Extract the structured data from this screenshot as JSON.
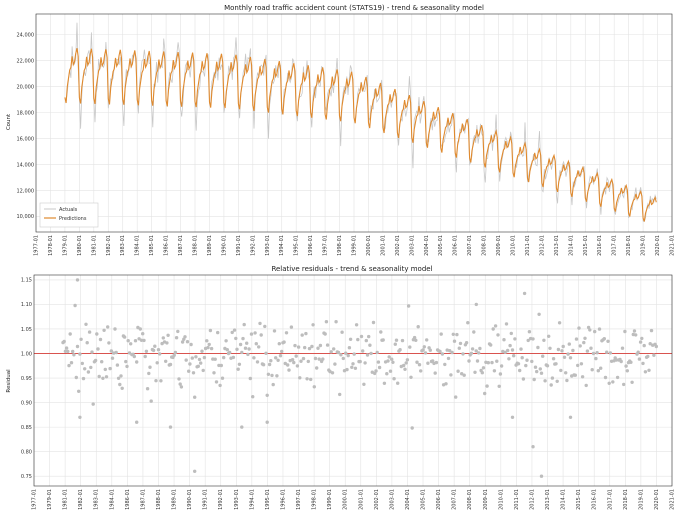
{
  "colors": {
    "actual": "#c8c8c8",
    "prediction": "#e08a2e",
    "residual_point": "#bdbdbd",
    "reference_line": "#d9534f"
  },
  "chart_data": [
    {
      "type": "line",
      "title": "Monthly road traffic accident count (STATS19) - trend & seasonality model",
      "xlabel": "",
      "ylabel": "Count",
      "xlim": [
        "1977-01",
        "2021-01"
      ],
      "ylim": [
        8800,
        25600
      ],
      "yticks": [
        10000,
        12000,
        14000,
        16000,
        18000,
        20000,
        22000,
        24000
      ],
      "ytick_labels": [
        "10,000",
        "12,000",
        "14,000",
        "16,000",
        "18,000",
        "20,000",
        "22,000",
        "24,000"
      ],
      "xtick_labels": [
        "1977-01",
        "1978-01",
        "1979-01",
        "1980-01",
        "1981-01",
        "1982-01",
        "1983-01",
        "1984-01",
        "1985-01",
        "1986-01",
        "1987-01",
        "1988-01",
        "1989-01",
        "1990-01",
        "1991-01",
        "1992-01",
        "1993-01",
        "1994-01",
        "1995-01",
        "1996-01",
        "1997-01",
        "1998-01",
        "1999-01",
        "2000-01",
        "2001-01",
        "2002-01",
        "2003-01",
        "2004-01",
        "2005-01",
        "2006-01",
        "2007-01",
        "2008-01",
        "2009-01",
        "2010-01",
        "2011-01",
        "2012-01",
        "2013-01",
        "2014-01",
        "2015-01",
        "2016-01",
        "2017-01",
        "2018-01",
        "2019-01",
        "2020-01",
        "2021-01"
      ],
      "series": [
        {
          "name": "Actuals",
          "start": "1979-01",
          "end": "2019-12",
          "frequency": "monthly"
        },
        {
          "name": "Predictions",
          "start": "1979-01",
          "end": "2019-12",
          "frequency": "monthly"
        }
      ],
      "legend": "lower-left",
      "grid": true
    },
    {
      "type": "scatter",
      "title": "Relative residuals - trend & seasonality model",
      "xlabel": "",
      "ylabel": "Residual",
      "xlim": [
        "1977-01",
        "2021-01"
      ],
      "ylim": [
        0.73,
        1.16
      ],
      "yticks": [
        0.75,
        0.8,
        0.85,
        0.9,
        0.95,
        1.0,
        1.05,
        1.1,
        1.15
      ],
      "ytick_labels": [
        "0.75",
        "0.80",
        "0.85",
        "0.90",
        "0.95",
        "1.00",
        "1.05",
        "1.10",
        "1.15"
      ],
      "xtick_labels": [
        "1977-01",
        "1979-01",
        "1981-01",
        "1982-01",
        "1983-01",
        "1984-01",
        "1986-01",
        "1987-01",
        "1988-01",
        "1989-01",
        "1990-01",
        "1991-01",
        "1992-01",
        "1993-01",
        "1994-01",
        "1995-01",
        "1996-01",
        "1997-01",
        "1998-01",
        "1999-01",
        "2000-01",
        "2001-01",
        "2002-01",
        "2003-01",
        "2004-01",
        "2005-01",
        "2006-01",
        "2007-01",
        "2008-01",
        "2009-01",
        "2010-01",
        "2011-01",
        "2012-01",
        "2013-01",
        "2014-01",
        "2015-01",
        "2016-01",
        "2017-01",
        "2018-01",
        "2019-01",
        "2020-01",
        "2021-01"
      ],
      "reference_line": 1.0,
      "outliers": [
        {
          "x": "1980-01",
          "y": 1.15
        },
        {
          "x": "1980-03",
          "y": 0.87
        },
        {
          "x": "1984-02",
          "y": 0.86
        },
        {
          "x": "1986-06",
          "y": 0.85
        },
        {
          "x": "1988-02",
          "y": 0.76
        },
        {
          "x": "1991-05",
          "y": 0.85
        },
        {
          "x": "1993-02",
          "y": 0.86
        },
        {
          "x": "2007-07",
          "y": 1.1
        },
        {
          "x": "2010-01",
          "y": 0.87
        },
        {
          "x": "2011-06",
          "y": 0.81
        },
        {
          "x": "2012-01",
          "y": 0.75
        },
        {
          "x": "2014-01",
          "y": 0.87
        }
      ],
      "grid": true
    }
  ]
}
